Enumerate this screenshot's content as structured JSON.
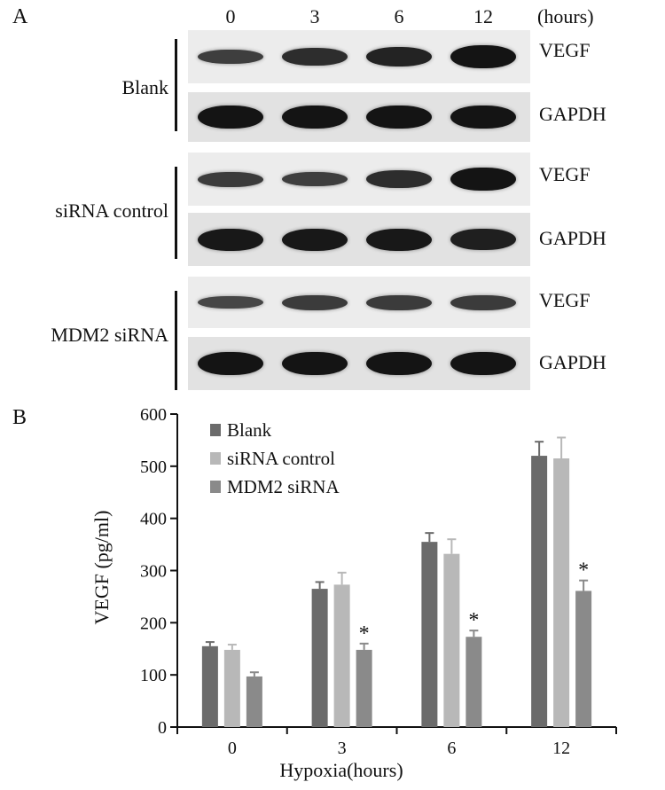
{
  "panel_a": {
    "letter": "A",
    "time_points": [
      "0",
      "3",
      "6",
      "12"
    ],
    "time_unit": "(hours)",
    "groups": [
      {
        "name": "Blank",
        "rows": [
          {
            "protein": "VEGF",
            "intensity": [
              0.4,
              0.65,
              0.78,
              1.0
            ]
          },
          {
            "protein": "GAPDH",
            "intensity": [
              1.0,
              1.0,
              1.0,
              1.0
            ]
          }
        ]
      },
      {
        "name": "siRNA control",
        "rows": [
          {
            "protein": "VEGF",
            "intensity": [
              0.45,
              0.4,
              0.65,
              1.0
            ]
          },
          {
            "protein": "GAPDH",
            "intensity": [
              0.95,
              0.95,
              0.95,
              0.85
            ]
          }
        ]
      },
      {
        "name": "MDM2 siRNA",
        "rows": [
          {
            "protein": "VEGF",
            "intensity": [
              0.28,
              0.45,
              0.45,
              0.45
            ]
          },
          {
            "protein": "GAPDH",
            "intensity": [
              1.0,
              1.0,
              1.0,
              1.0
            ]
          }
        ]
      }
    ]
  },
  "panel_b": {
    "letter": "B"
  },
  "chart_data": {
    "type": "bar",
    "categories": [
      "0",
      "3",
      "6",
      "12"
    ],
    "xlabel": "Hypoxia(hours)",
    "ylabel": "VEGF (pg/ml)",
    "ylim": [
      0,
      600
    ],
    "yticks": [
      0,
      100,
      200,
      300,
      400,
      500,
      600
    ],
    "legend_position": "top-left",
    "series": [
      {
        "name": "Blank",
        "color": "#6b6b6b",
        "values": [
          155,
          265,
          355,
          520
        ],
        "errors": [
          8,
          13,
          17,
          27
        ]
      },
      {
        "name": "siRNA control",
        "color": "#b8b8b8",
        "values": [
          148,
          273,
          332,
          515
        ],
        "errors": [
          10,
          23,
          28,
          40
        ]
      },
      {
        "name": "MDM2 siRNA",
        "color": "#8a8a8a",
        "values": [
          97,
          148,
          173,
          261
        ],
        "errors": [
          8,
          12,
          12,
          20
        ]
      }
    ],
    "significance": [
      {
        "series": 2,
        "category": 1,
        "mark": "*"
      },
      {
        "series": 2,
        "category": 2,
        "mark": "*"
      },
      {
        "series": 2,
        "category": 3,
        "mark": "*"
      }
    ]
  }
}
